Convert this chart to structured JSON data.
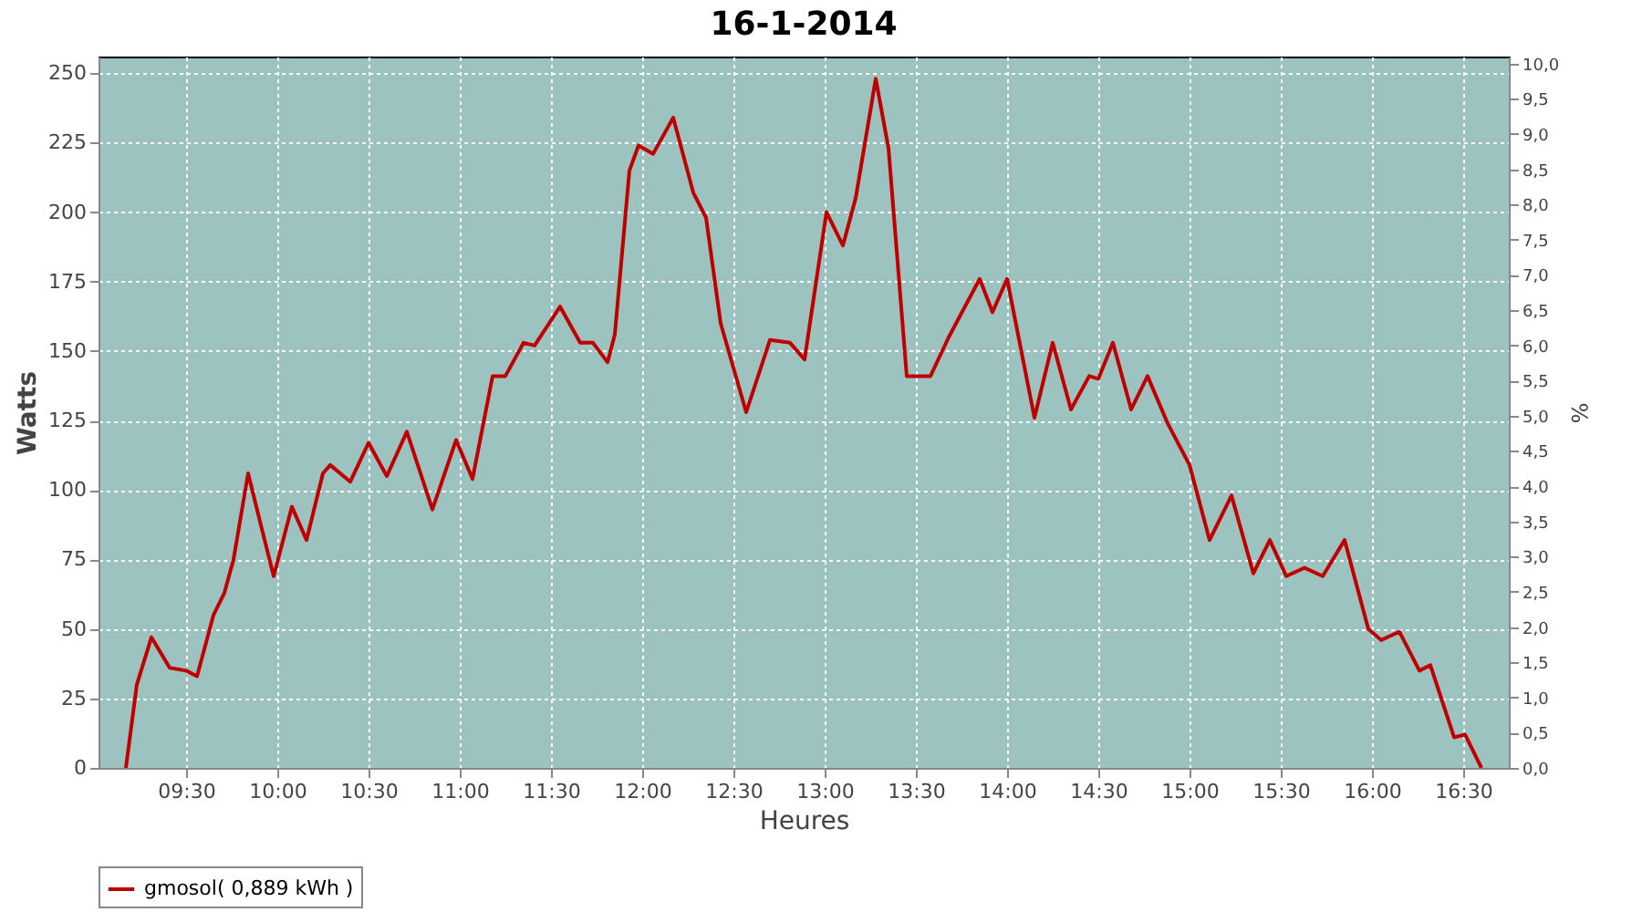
{
  "chart_data": {
    "type": "line",
    "title": "16-1-2014",
    "xlabel": "Heures",
    "ylabel": "Watts",
    "y2label": "%",
    "x": [
      9.17,
      9.23,
      9.31,
      9.41,
      9.5,
      9.56,
      9.65,
      9.71,
      9.76,
      9.84,
      9.9,
      9.98,
      10.08,
      10.16,
      10.25,
      10.29,
      10.4,
      10.5,
      10.6,
      10.71,
      10.85,
      10.98,
      11.07,
      11.18,
      11.25,
      11.35,
      11.41,
      11.55,
      11.66,
      11.73,
      11.81,
      11.85,
      11.93,
      11.98,
      12.06,
      12.17,
      12.28,
      12.35,
      12.43,
      12.57,
      12.7,
      12.81,
      12.89,
      13.01,
      13.1,
      13.17,
      13.28,
      13.35,
      13.45,
      13.58,
      13.68,
      13.85,
      13.92,
      14.0,
      14.15,
      14.25,
      14.35,
      14.45,
      14.5,
      14.58,
      14.68,
      14.77,
      14.88,
      15.0,
      15.11,
      15.23,
      15.35,
      15.44,
      15.53,
      15.63,
      15.73,
      15.85,
      15.98,
      16.05,
      16.15,
      16.26,
      16.32,
      16.45,
      16.51,
      16.6
    ],
    "series": [
      {
        "name": "gmosol( 0,889 kWh )",
        "color": "#c00000",
        "values": [
          0,
          30,
          47,
          36,
          35,
          33,
          55,
          63,
          75,
          106,
          90,
          69,
          94,
          82,
          106,
          109,
          103,
          117,
          105,
          121,
          93,
          118,
          104,
          141,
          141,
          153,
          152,
          166,
          153,
          153,
          146,
          156,
          215,
          224,
          221,
          234,
          207,
          198,
          160,
          128,
          154,
          153,
          147,
          200,
          188,
          205,
          248,
          223,
          141,
          141,
          155,
          176,
          164,
          176,
          126,
          153,
          129,
          141,
          140,
          153,
          129,
          141,
          124,
          109,
          82,
          98,
          70,
          82,
          69,
          72,
          69,
          82,
          50,
          46,
          49,
          35,
          37,
          11,
          12,
          0
        ]
      }
    ],
    "xlim": [
      9.02,
      16.75
    ],
    "xticks": [
      {
        "value": 9.5,
        "label": "09:30"
      },
      {
        "value": 10,
        "label": "10:00"
      },
      {
        "value": 10.5,
        "label": "10:30"
      },
      {
        "value": 11,
        "label": "11:00"
      },
      {
        "value": 11.5,
        "label": "11:30"
      },
      {
        "value": 12,
        "label": "12:00"
      },
      {
        "value": 12.5,
        "label": "12:30"
      },
      {
        "value": 13,
        "label": "13:00"
      },
      {
        "value": 13.5,
        "label": "13:30"
      },
      {
        "value": 14,
        "label": "14:00"
      },
      {
        "value": 14.5,
        "label": "14:30"
      },
      {
        "value": 15,
        "label": "15:00"
      },
      {
        "value": 15.5,
        "label": "15:30"
      },
      {
        "value": 16,
        "label": "16:00"
      },
      {
        "value": 16.5,
        "label": "16:30"
      }
    ],
    "ylim": [
      0,
      256
    ],
    "yticks": [
      0,
      25,
      50,
      75,
      100,
      125,
      150,
      175,
      200,
      225,
      250
    ],
    "y2lim": [
      0,
      10.1
    ],
    "y2ticks": [
      {
        "value": 0,
        "label": "0,0"
      },
      {
        "value": 0.5,
        "label": "0,5"
      },
      {
        "value": 1,
        "label": "1,0"
      },
      {
        "value": 1.5,
        "label": "1,5"
      },
      {
        "value": 2,
        "label": "2,0"
      },
      {
        "value": 2.5,
        "label": "2,5"
      },
      {
        "value": 3,
        "label": "3,0"
      },
      {
        "value": 3.5,
        "label": "3,5"
      },
      {
        "value": 4,
        "label": "4,0"
      },
      {
        "value": 4.5,
        "label": "4,5"
      },
      {
        "value": 5,
        "label": "5,0"
      },
      {
        "value": 5.5,
        "label": "5,5"
      },
      {
        "value": 6,
        "label": "6,0"
      },
      {
        "value": 6.5,
        "label": "6,5"
      },
      {
        "value": 7,
        "label": "7,0"
      },
      {
        "value": 7.5,
        "label": "7,5"
      },
      {
        "value": 8,
        "label": "8,0"
      },
      {
        "value": 8.5,
        "label": "8,5"
      },
      {
        "value": 9,
        "label": "9,0"
      },
      {
        "value": 9.5,
        "label": "9,5"
      },
      {
        "value": 10,
        "label": "10,0"
      }
    ],
    "grid": true,
    "legend": "bottom",
    "line_style": "solid",
    "marker": "none"
  }
}
